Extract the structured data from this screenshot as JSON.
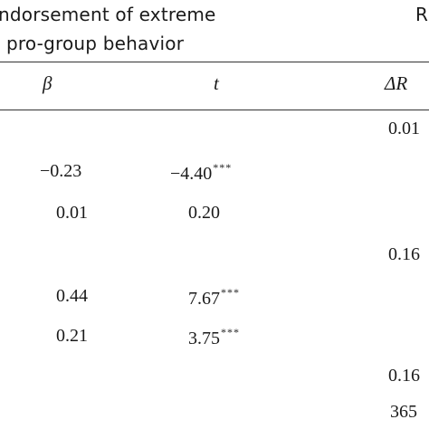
{
  "header": {
    "group_title_line1": "ndorsement of extreme",
    "group_title_line2": "pro-group behavior",
    "right_group_title": "R"
  },
  "columns": {
    "beta": "β",
    "t": "t",
    "delta_r": "ΔR"
  },
  "rows": [
    {
      "beta": "",
      "t": "",
      "t_sig": "",
      "delta_r": "0.01"
    },
    {
      "beta": "−0.23",
      "t": "−4.40",
      "t_sig": "***",
      "delta_r": ""
    },
    {
      "beta": "0.01",
      "t": "0.20",
      "t_sig": "",
      "delta_r": ""
    },
    {
      "beta": "",
      "t": "",
      "t_sig": "",
      "delta_r": "0.16"
    },
    {
      "beta": "0.44",
      "t": "7.67",
      "t_sig": "***",
      "delta_r": ""
    },
    {
      "beta": "0.21",
      "t": "3.75",
      "t_sig": "***",
      "delta_r": ""
    },
    {
      "beta": "",
      "t": "",
      "t_sig": "",
      "delta_r": "0.16"
    },
    {
      "beta": "",
      "t": "",
      "t_sig": "",
      "delta_r": "365"
    }
  ]
}
